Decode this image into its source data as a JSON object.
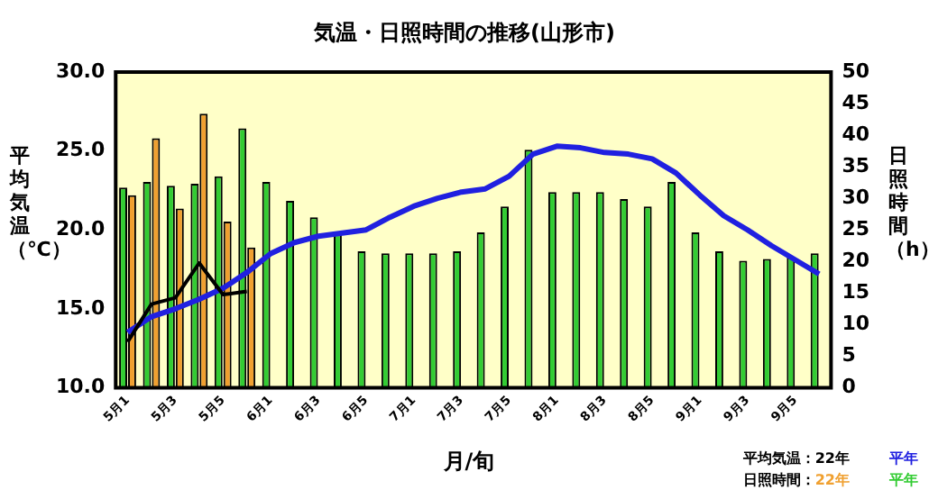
{
  "chart_data": {
    "type": "bar",
    "title": "気温・日照時間の推移(山形市)",
    "xlabel": "月/旬",
    "ylabel": "平均気温（℃）",
    "y2label": "日照時間（h）",
    "categories": [
      "5月1",
      null,
      "5月3",
      null,
      "5月5",
      null,
      "6月1",
      null,
      "6月3",
      null,
      "6月5",
      null,
      "7月1",
      null,
      "7月3",
      null,
      "7月5",
      null,
      "8月1",
      null,
      "8月3",
      null,
      "8月5",
      null,
      "9月1",
      null,
      "9月3",
      null,
      "9月5",
      null
    ],
    "series": [
      {
        "name": "22年",
        "type": "line",
        "color": "#000000",
        "values": [
          12.9,
          15.3,
          15.7,
          17.9,
          15.9,
          16.1,
          null,
          null,
          null,
          null,
          null,
          null,
          null,
          null,
          null,
          null,
          null,
          null,
          null,
          null,
          null,
          null,
          null,
          null,
          null,
          null,
          null,
          null,
          null,
          null
        ]
      },
      {
        "name": "平年",
        "type": "line",
        "color": "#2020e0",
        "values": [
          13.5,
          14.5,
          15.0,
          15.6,
          16.3,
          17.3,
          18.5,
          19.2,
          19.6,
          19.8,
          20.0,
          20.8,
          21.5,
          22.0,
          22.4,
          22.6,
          23.4,
          24.8,
          25.3,
          25.2,
          24.9,
          24.8,
          24.5,
          23.6,
          22.2,
          20.9,
          20.0,
          19.0,
          18.1,
          17.2
        ]
      },
      {
        "name": "22年",
        "axis": "y2",
        "color": "#f0a030",
        "values": [
          30.5,
          39.5,
          28.4,
          43.4,
          26.3,
          22.2,
          null,
          null,
          null,
          null,
          null,
          null,
          null,
          null,
          null,
          null,
          null,
          null,
          null,
          null,
          null,
          null,
          null,
          null,
          null,
          null,
          null,
          null,
          null,
          null
        ]
      },
      {
        "name": "平年",
        "axis": "y2",
        "color": "#33cc33",
        "values": [
          31.7,
          32.6,
          32.0,
          32.3,
          33.5,
          41.1,
          32.6,
          29.6,
          27.0,
          24.3,
          21.6,
          21.3,
          21.3,
          21.3,
          21.6,
          24.6,
          28.7,
          37.7,
          31.0,
          31.0,
          31.0,
          29.9,
          28.7,
          32.6,
          24.6,
          21.6,
          20.1,
          20.4,
          20.7,
          21.3
        ]
      }
    ],
    "ylim": [
      10,
      30
    ],
    "yticks": [
      {
        "value": 10,
        "label": "10.0"
      },
      {
        "value": 15,
        "label": "15.0"
      },
      {
        "value": 20,
        "label": "20.0"
      },
      {
        "value": 25,
        "label": "25.0"
      },
      {
        "value": 30,
        "label": "30.0"
      }
    ],
    "y2lim": [
      0,
      50
    ],
    "y2ticks": [
      0,
      5,
      10,
      15,
      20,
      25,
      30,
      35,
      40,
      45,
      50
    ],
    "annotations": [
      "平均気温：",
      "日照時間："
    ],
    "legend": "bottom right",
    "marker": "none",
    "line_style": "solid",
    "grid": false
  }
}
